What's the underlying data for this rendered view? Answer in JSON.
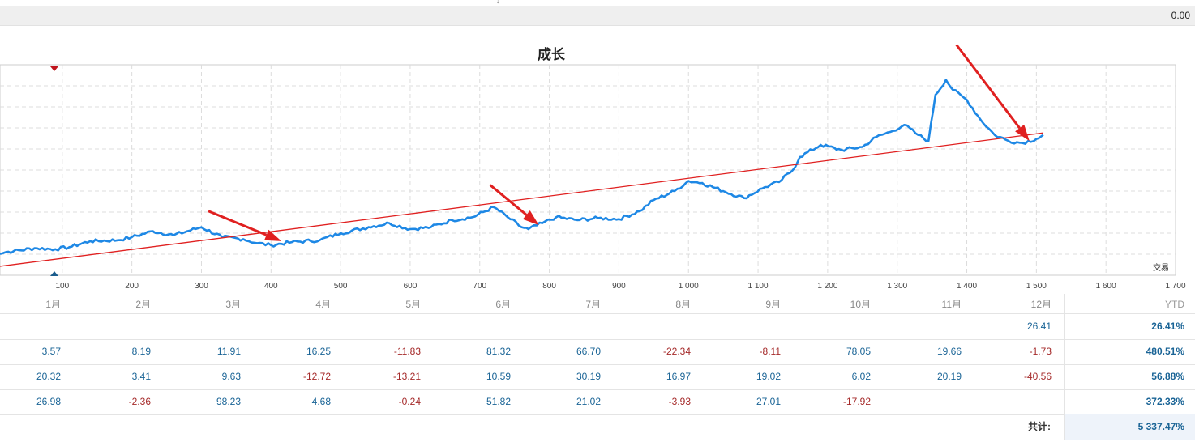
{
  "header": {
    "value": "0.00"
  },
  "chart_data": {
    "type": "line",
    "title": "成长",
    "xlabel": "交易",
    "xlim": [
      0,
      1700
    ],
    "x_ticks": [
      100,
      200,
      300,
      400,
      500,
      600,
      700,
      800,
      900,
      1000,
      1100,
      1200,
      1300,
      1400,
      1500,
      1600,
      1700
    ],
    "x_tick_labels": [
      "100",
      "200",
      "300",
      "400",
      "500",
      "600",
      "700",
      "800",
      "900",
      "1 000",
      "1 100",
      "1 200",
      "1 300",
      "1 400",
      "1 500",
      "1 600",
      "1 700"
    ],
    "series": [
      {
        "color": "#1e88e5",
        "points": [
          [
            0,
            1.2
          ],
          [
            30,
            1.4
          ],
          [
            60,
            1.7
          ],
          [
            90,
            1.6
          ],
          [
            110,
            1.8
          ],
          [
            140,
            2.4
          ],
          [
            180,
            2.5
          ],
          [
            200,
            2.8
          ],
          [
            230,
            3.4
          ],
          [
            260,
            3.0
          ],
          [
            300,
            3.8
          ],
          [
            330,
            2.8
          ],
          [
            360,
            2.6
          ],
          [
            380,
            2.2
          ],
          [
            400,
            2.0
          ],
          [
            430,
            2.3
          ],
          [
            470,
            2.5
          ],
          [
            500,
            3.2
          ],
          [
            540,
            3.8
          ],
          [
            570,
            4.2
          ],
          [
            600,
            3.6
          ],
          [
            630,
            3.8
          ],
          [
            660,
            4.5
          ],
          [
            690,
            4.8
          ],
          [
            720,
            5.8
          ],
          [
            740,
            4.8
          ],
          [
            760,
            3.8
          ],
          [
            770,
            3.6
          ],
          [
            790,
            4.2
          ],
          [
            810,
            4.8
          ],
          [
            840,
            4.5
          ],
          [
            870,
            4.7
          ],
          [
            900,
            4.6
          ],
          [
            930,
            5.4
          ],
          [
            950,
            6.5
          ],
          [
            980,
            7.4
          ],
          [
            1000,
            8.4
          ],
          [
            1020,
            8.2
          ],
          [
            1050,
            7.4
          ],
          [
            1080,
            6.7
          ],
          [
            1110,
            7.8
          ],
          [
            1130,
            8.3
          ],
          [
            1150,
            9.5
          ],
          [
            1160,
            10.8
          ],
          [
            1190,
            12.0
          ],
          [
            1220,
            11.5
          ],
          [
            1250,
            11.8
          ],
          [
            1270,
            12.8
          ],
          [
            1290,
            13.3
          ],
          [
            1310,
            14.0
          ],
          [
            1330,
            13.0
          ],
          [
            1345,
            12.4
          ],
          [
            1355,
            17.0
          ],
          [
            1370,
            18.5
          ],
          [
            1380,
            17.5
          ],
          [
            1400,
            16.5
          ],
          [
            1420,
            14.5
          ],
          [
            1440,
            13.0
          ],
          [
            1460,
            12.4
          ],
          [
            1480,
            12.2
          ],
          [
            1500,
            12.6
          ],
          [
            1510,
            13.0
          ]
        ]
      }
    ],
    "trend_line": {
      "color": "#e02020",
      "from": [
        0,
        -0.2
      ],
      "to": [
        1510,
        13.2
      ]
    },
    "annotations": [
      {
        "type": "arrow",
        "color": "#e02020",
        "from": [
          310,
          5.4
        ],
        "to": [
          415,
          2.4
        ]
      },
      {
        "type": "arrow",
        "color": "#e02020",
        "from": [
          715,
          8.0
        ],
        "to": [
          785,
          4.0
        ]
      },
      {
        "type": "arrow",
        "color": "#e02020",
        "from": [
          1385,
          22.0
        ],
        "to": [
          1490,
          12.4
        ]
      }
    ],
    "grid": true,
    "ylim": [
      -1,
      20
    ]
  },
  "table": {
    "months": [
      "1月",
      "2月",
      "3月",
      "4月",
      "5月",
      "6月",
      "7月",
      "8月",
      "9月",
      "10月",
      "11月",
      "12月"
    ],
    "ytd_label": "YTD",
    "rows": [
      {
        "values": [
          "",
          "",
          "",
          "",
          "",
          "",
          "",
          "",
          "",
          "",
          "",
          "26.41"
        ],
        "ytd": "26.41%"
      },
      {
        "values": [
          "3.57",
          "8.19",
          "11.91",
          "16.25",
          "-11.83",
          "81.32",
          "66.70",
          "-22.34",
          "-8.11",
          "78.05",
          "19.66",
          "-1.73"
        ],
        "ytd": "480.51%"
      },
      {
        "values": [
          "20.32",
          "3.41",
          "9.63",
          "-12.72",
          "-13.21",
          "10.59",
          "30.19",
          "16.97",
          "19.02",
          "6.02",
          "20.19",
          "-40.56"
        ],
        "ytd": "56.88%"
      },
      {
        "values": [
          "26.98",
          "-2.36",
          "98.23",
          "4.68",
          "-0.24",
          "51.82",
          "21.02",
          "-3.93",
          "27.01",
          "-17.92",
          "",
          ""
        ],
        "ytd": "372.33%"
      }
    ],
    "total_label": "共计:",
    "total_value": "5 337.47%"
  }
}
